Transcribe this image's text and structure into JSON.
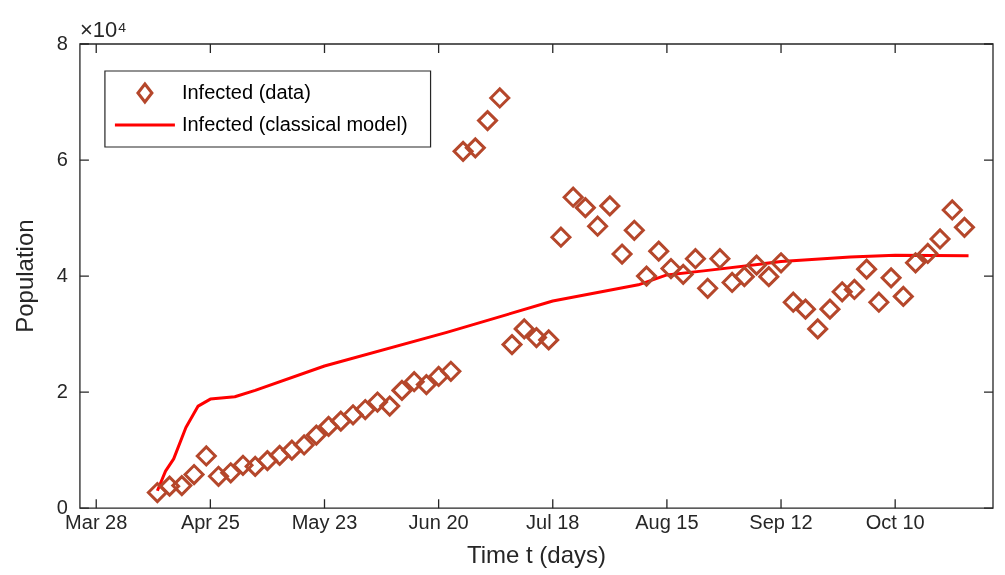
{
  "chart_data": {
    "type": "scatter",
    "xlabel": "Time t (days)",
    "ylabel": "Population",
    "annotations": [
      "×10⁴"
    ],
    "xlim": [
      "--03-24",
      "--11-03"
    ],
    "xticks": [
      {
        "value": "--03-28",
        "label": "Mar 28"
      },
      {
        "value": "--04-25",
        "label": "Apr 25"
      },
      {
        "value": "--05-23",
        "label": "May 23"
      },
      {
        "value": "--06-20",
        "label": "Jun 20"
      },
      {
        "value": "--07-18",
        "label": "Jul 18"
      },
      {
        "value": "--08-15",
        "label": "Aug 15"
      },
      {
        "value": "--09-12",
        "label": "Sep 12"
      },
      {
        "value": "--10-10",
        "label": "Oct 10"
      }
    ],
    "ylim": [
      0,
      8
    ],
    "yticks": [
      0,
      2,
      4,
      6,
      8
    ],
    "grid": false,
    "legend": "top left",
    "series": [
      {
        "type": "scatter",
        "name": "Infected (data)",
        "color": "#b5472b",
        "marker": "diamond",
        "x": [
          "--04-12",
          "--04-15",
          "--04-18",
          "--04-21",
          "--04-24",
          "--04-27",
          "--04-30",
          "--05-03",
          "--05-06",
          "--05-09",
          "--05-12",
          "--05-15",
          "--05-18",
          "--05-21",
          "--05-24",
          "--05-27",
          "--05-30",
          "--06-02",
          "--06-05",
          "--06-08",
          "--06-11",
          "--06-14",
          "--06-17",
          "--06-20",
          "--06-23",
          "--06-26",
          "--06-29",
          "--07-02",
          "--07-05",
          "--07-08",
          "--07-11",
          "--07-14",
          "--07-17",
          "--07-20",
          "--07-23",
          "--07-26",
          "--07-29",
          "--08-01",
          "--08-04",
          "--08-07",
          "--08-10",
          "--08-13",
          "--08-16",
          "--08-19",
          "--08-22",
          "--08-25",
          "--08-28",
          "--08-31",
          "--09-03",
          "--09-06",
          "--09-09",
          "--09-12",
          "--09-15",
          "--09-18",
          "--09-21",
          "--09-24",
          "--09-27",
          "--09-30",
          "--10-03",
          "--10-06",
          "--10-09",
          "--10-12",
          "--10-15",
          "--10-18",
          "--10-21",
          "--10-24",
          "--10-27"
        ],
        "values": [
          0.27,
          0.38,
          0.39,
          0.58,
          0.9,
          0.55,
          0.61,
          0.74,
          0.72,
          0.82,
          0.91,
          1.0,
          1.09,
          1.26,
          1.41,
          1.5,
          1.61,
          1.7,
          1.83,
          1.76,
          2.03,
          2.18,
          2.13,
          2.27,
          2.36,
          6.15,
          6.21,
          6.68,
          7.07,
          2.82,
          3.09,
          2.94,
          2.9,
          4.67,
          5.36,
          5.18,
          4.86,
          5.21,
          4.38,
          4.79,
          4.0,
          4.43,
          4.13,
          4.03,
          4.3,
          3.79,
          4.3,
          3.89,
          3.99,
          4.19,
          3.99,
          4.23,
          3.55,
          3.43,
          3.09,
          3.43,
          3.73,
          3.77,
          4.12,
          3.55,
          3.97,
          3.65,
          4.23,
          4.39,
          4.64,
          5.14,
          4.84
        ]
      },
      {
        "type": "line",
        "name": "Infected (classical model)",
        "color": "#ff0000",
        "marker": "none",
        "line_style": "solid",
        "x": [
          "--04-12",
          "--04-14",
          "--04-16",
          "--04-19",
          "--04-22",
          "--04-25",
          "--05-01",
          "--05-06",
          "--05-23",
          "--06-22",
          "--07-18",
          "--08-08",
          "--08-15",
          "--08-24",
          "--09-12",
          "--09-29",
          "--10-10",
          "--10-28"
        ],
        "values": [
          0.3,
          0.64,
          0.85,
          1.39,
          1.76,
          1.88,
          1.92,
          2.03,
          2.45,
          3.03,
          3.57,
          3.85,
          4.02,
          4.09,
          4.25,
          4.33,
          4.36,
          4.35
        ]
      }
    ]
  }
}
